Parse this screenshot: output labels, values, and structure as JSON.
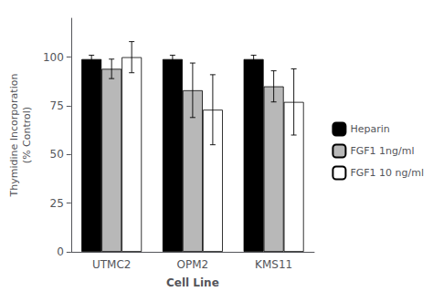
{
  "chart_data": {
    "type": "bar",
    "categories": [
      "UTMC2",
      "OPM2",
      "KMS11"
    ],
    "series": [
      {
        "name": "Heparin",
        "color": "#000000",
        "values": [
          99,
          99,
          99
        ],
        "errors": [
          2,
          2,
          2
        ]
      },
      {
        "name": "FGF1 1ng/ml",
        "color": "#b8b8b8",
        "values": [
          94,
          83,
          85
        ],
        "errors": [
          5,
          14,
          8
        ]
      },
      {
        "name": "FGF1 10 ng/ml",
        "color": "#ffffff",
        "values": [
          100,
          73,
          77
        ],
        "errors": [
          8,
          18,
          17
        ]
      }
    ],
    "ylabel": "Thymidine Incorporation\n(% Control)",
    "xlabel": "Cell Line",
    "ylim": [
      0,
      120
    ],
    "yticks": [
      0,
      25,
      50,
      75,
      100
    ],
    "grid": false,
    "legend": "right"
  }
}
